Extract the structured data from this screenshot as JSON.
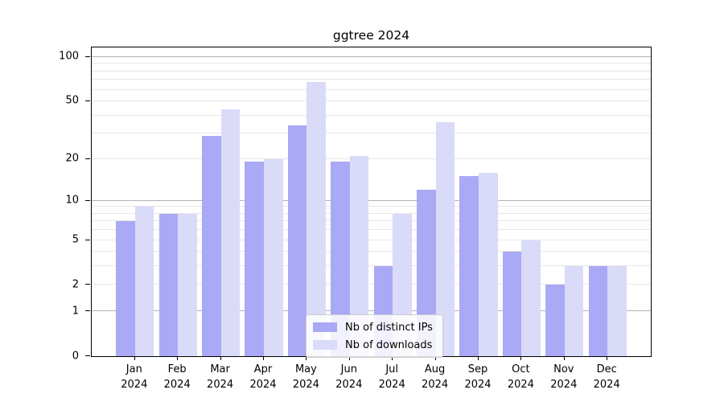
{
  "chart_data": {
    "type": "bar",
    "title": "ggtree 2024",
    "categories": [
      "Jan",
      "Feb",
      "Mar",
      "Apr",
      "May",
      "Jun",
      "Jul",
      "Aug",
      "Sep",
      "Oct",
      "Nov",
      "Dec"
    ],
    "year_label": "2024",
    "series": [
      {
        "name": "Nb of distinct IPs",
        "color": "#a9a9f5",
        "values": [
          7,
          8,
          29,
          19,
          34,
          19,
          3,
          12,
          15,
          4,
          2,
          3
        ]
      },
      {
        "name": "Nb of downloads",
        "color": "#dadaf9",
        "values": [
          9,
          8,
          44,
          20,
          68,
          21,
          8,
          36,
          16,
          5,
          3,
          3
        ]
      }
    ],
    "yscale": "log1p",
    "ylim": [
      0,
      116
    ],
    "yticks": [
      0,
      1,
      2,
      5,
      10,
      20,
      50,
      100
    ],
    "ytick_labels": [
      "0",
      "1",
      "2",
      "5",
      "10",
      "20",
      "50",
      "100"
    ],
    "grid_minor": [
      2,
      3,
      4,
      5,
      6,
      7,
      8,
      9,
      20,
      30,
      40,
      50,
      60,
      70,
      80,
      90
    ],
    "grid_major": [
      1,
      10,
      100
    ],
    "grid": true,
    "legend_position": "inside-bottom-center",
    "colors": {
      "bar_distinct_ips": "#a9a9f5",
      "bar_downloads": "#dadaf9",
      "grid_minor": "#e7e7e7",
      "grid_major": "#b3b3b3",
      "axis": "#000000"
    }
  }
}
